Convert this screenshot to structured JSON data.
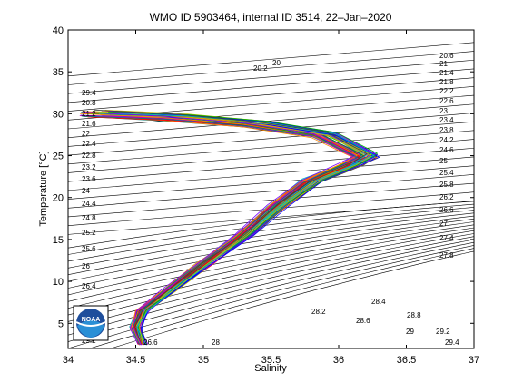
{
  "chart_data": {
    "type": "line",
    "title": "WMO ID 5903464, internal ID 3514, 22–Jan–2020",
    "xlabel": "Salinity",
    "ylabel": "Temperature [°C]",
    "xlim": [
      34,
      37
    ],
    "ylim": [
      2,
      40
    ],
    "x_ticks": [
      "34",
      "34.5",
      "35",
      "35.5",
      "36",
      "36.5",
      "37"
    ],
    "y_ticks": [
      "5",
      "10",
      "15",
      "20",
      "25",
      "30",
      "35",
      "40"
    ],
    "grid": false,
    "logo": "NOAA",
    "density_contours": {
      "labels_left": [
        "29.4",
        "20.8",
        "21.2",
        "21.6",
        "22",
        "22.4",
        "22.8",
        "23.2",
        "23.6",
        "24",
        "24.4",
        "24.8",
        "25.2",
        "25.6",
        "26",
        "26.4",
        "29.2"
      ],
      "labels_right": [
        "20.6",
        "21",
        "21.4",
        "21.8",
        "22.2",
        "22.6",
        "23",
        "23.4",
        "23.8",
        "24.2",
        "24.6",
        "25",
        "25.4",
        "25.8",
        "26.2",
        "26.6",
        "27",
        "27.4",
        "27.8"
      ],
      "labels_bottom": [
        "26.6",
        "28",
        "28.2",
        "28.6",
        "28.4",
        "28.8",
        "29",
        "29.2",
        "29.4"
      ],
      "labels_top": [
        "20",
        "20.2"
      ]
    },
    "profiles": {
      "count_approx": 60,
      "representative": [
        {
          "salinity": 34.55,
          "temperature": 2.5
        },
        {
          "salinity": 34.5,
          "temperature": 4.5
        },
        {
          "salinity": 34.55,
          "temperature": 6.5
        },
        {
          "salinity": 34.75,
          "temperature": 9.0
        },
        {
          "salinity": 35.0,
          "temperature": 12.0
        },
        {
          "salinity": 35.3,
          "temperature": 15.5
        },
        {
          "salinity": 35.55,
          "temperature": 19.0
        },
        {
          "salinity": 35.8,
          "temperature": 22.0
        },
        {
          "salinity": 36.1,
          "temperature": 24.0
        },
        {
          "salinity": 36.2,
          "temperature": 25.0
        },
        {
          "salinity": 35.9,
          "temperature": 27.5
        },
        {
          "salinity": 35.4,
          "temperature": 28.8
        },
        {
          "salinity": 34.8,
          "temperature": 29.6
        },
        {
          "salinity": 34.2,
          "temperature": 30.0
        }
      ],
      "colors": [
        "#0000ff",
        "#00aa00",
        "#ff0000",
        "#00bfbf",
        "#bf00bf",
        "#bfbf00",
        "#404040",
        "#ff8000",
        "#8000ff",
        "#008080"
      ]
    }
  }
}
